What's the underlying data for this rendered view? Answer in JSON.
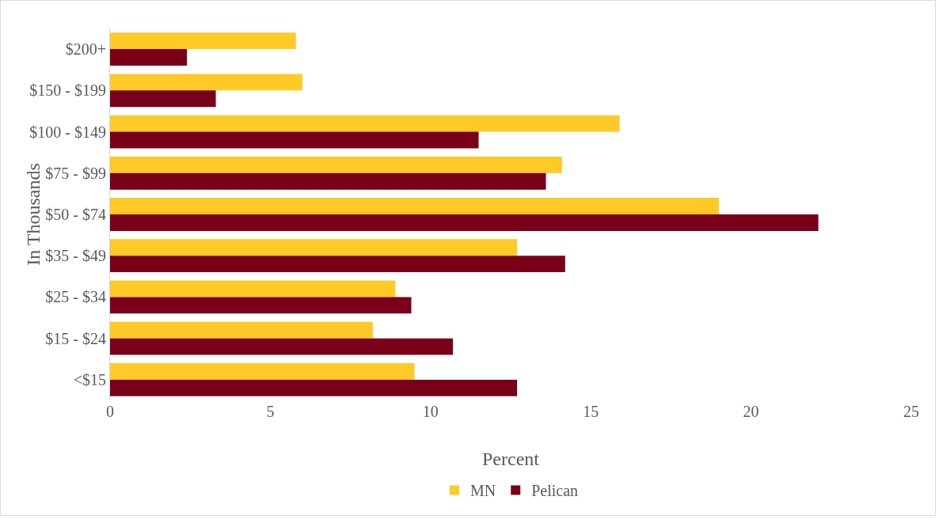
{
  "chart_data": {
    "type": "bar",
    "orientation": "horizontal",
    "xlabel": "Percent",
    "ylabel": "In Thousands",
    "categories": [
      "$200+",
      "$150 - $199",
      "$100 - $149",
      "$75 - $99",
      "$50 - $74",
      "$35 - $49",
      "$25 - $34",
      "$15 - $24",
      "<$15"
    ],
    "series": [
      {
        "name": "MN",
        "color": "#ffc928",
        "values": [
          5.8,
          6.0,
          15.9,
          14.1,
          19.0,
          12.7,
          8.9,
          8.2,
          9.5
        ]
      },
      {
        "name": "Pelican",
        "color": "#7a0019",
        "values": [
          2.4,
          3.3,
          11.5,
          13.6,
          22.1,
          14.2,
          9.4,
          10.7,
          12.7
        ]
      }
    ],
    "xlim": [
      0,
      25
    ],
    "xticks": [
      0,
      5,
      10,
      15,
      20,
      25
    ],
    "grid": false,
    "legend": "bottom"
  }
}
